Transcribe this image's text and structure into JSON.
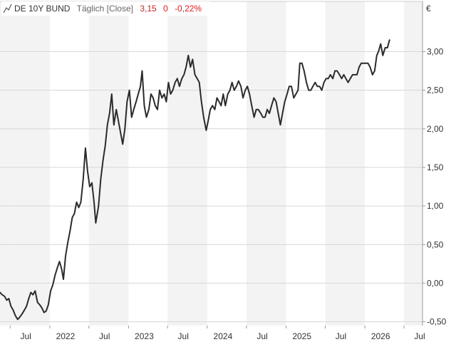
{
  "header": {
    "name": "DE 10Y BUND",
    "interval": "Täglich [Close]",
    "last": "3,15",
    "change": "0",
    "change_pct": "-0,22%"
  },
  "chart_data": {
    "type": "line",
    "currency": "€",
    "ylim": [
      -0.55,
      3.65
    ],
    "yticks": [
      -0.5,
      0.0,
      0.5,
      1.0,
      1.5,
      2.0,
      2.5,
      3.0
    ],
    "ytick_labels": [
      "-0,50",
      "0,00",
      "0,50",
      "1,00",
      "1,50",
      "2,00",
      "2,50",
      "3,00"
    ],
    "xlim": [
      "2021-05-15",
      "2026-09-25"
    ],
    "xticks": [
      {
        "date": "2021-07-01",
        "label": "Jul"
      },
      {
        "date": "2022-01-01",
        "label": "2022"
      },
      {
        "date": "2022-07-01",
        "label": "Jul"
      },
      {
        "date": "2023-01-01",
        "label": "2023"
      },
      {
        "date": "2023-07-01",
        "label": "Jul"
      },
      {
        "date": "2024-01-01",
        "label": "2024"
      },
      {
        "date": "2024-07-01",
        "label": "Jul"
      },
      {
        "date": "2025-01-01",
        "label": "2025"
      },
      {
        "date": "2025-07-01",
        "label": "Jul"
      },
      {
        "date": "2026-01-01",
        "label": "2026"
      },
      {
        "date": "2026-07-01",
        "label": "Jul"
      }
    ],
    "grid": true,
    "colors": {
      "line": "#2b2b2b",
      "negative": "#d42020",
      "band": "#f3f3f3",
      "grid": "#d6d6d6"
    },
    "series": [
      {
        "points": [
          [
            "2021-05-15",
            -0.12
          ],
          [
            "2021-05-25",
            -0.15
          ],
          [
            "2021-06-05",
            -0.17
          ],
          [
            "2021-06-15",
            -0.22
          ],
          [
            "2021-06-25",
            -0.2
          ],
          [
            "2021-07-05",
            -0.3
          ],
          [
            "2021-07-15",
            -0.35
          ],
          [
            "2021-07-25",
            -0.42
          ],
          [
            "2021-08-05",
            -0.47
          ],
          [
            "2021-08-15",
            -0.44
          ],
          [
            "2021-08-25",
            -0.4
          ],
          [
            "2021-09-05",
            -0.35
          ],
          [
            "2021-09-15",
            -0.3
          ],
          [
            "2021-09-25",
            -0.2
          ],
          [
            "2021-10-05",
            -0.12
          ],
          [
            "2021-10-15",
            -0.15
          ],
          [
            "2021-10-25",
            -0.1
          ],
          [
            "2021-11-05",
            -0.25
          ],
          [
            "2021-11-15",
            -0.28
          ],
          [
            "2021-11-25",
            -0.32
          ],
          [
            "2021-12-05",
            -0.38
          ],
          [
            "2021-12-15",
            -0.36
          ],
          [
            "2021-12-25",
            -0.28
          ],
          [
            "2022-01-05",
            -0.1
          ],
          [
            "2022-01-15",
            -0.02
          ],
          [
            "2022-01-25",
            0.1
          ],
          [
            "2022-02-05",
            0.2
          ],
          [
            "2022-02-15",
            0.28
          ],
          [
            "2022-02-25",
            0.18
          ],
          [
            "2022-03-05",
            0.05
          ],
          [
            "2022-03-15",
            0.35
          ],
          [
            "2022-03-25",
            0.52
          ],
          [
            "2022-04-05",
            0.68
          ],
          [
            "2022-04-15",
            0.85
          ],
          [
            "2022-04-25",
            0.9
          ],
          [
            "2022-05-05",
            1.05
          ],
          [
            "2022-05-15",
            0.98
          ],
          [
            "2022-05-25",
            1.05
          ],
          [
            "2022-06-05",
            1.35
          ],
          [
            "2022-06-15",
            1.75
          ],
          [
            "2022-06-25",
            1.45
          ],
          [
            "2022-07-05",
            1.25
          ],
          [
            "2022-07-15",
            1.3
          ],
          [
            "2022-07-25",
            1.05
          ],
          [
            "2022-08-02",
            0.78
          ],
          [
            "2022-08-15",
            1.0
          ],
          [
            "2022-08-25",
            1.35
          ],
          [
            "2022-09-05",
            1.6
          ],
          [
            "2022-09-15",
            1.78
          ],
          [
            "2022-09-25",
            2.05
          ],
          [
            "2022-10-05",
            2.2
          ],
          [
            "2022-10-15",
            2.45
          ],
          [
            "2022-10-25",
            2.05
          ],
          [
            "2022-11-05",
            2.25
          ],
          [
            "2022-11-15",
            2.1
          ],
          [
            "2022-11-25",
            1.95
          ],
          [
            "2022-12-05",
            1.8
          ],
          [
            "2022-12-15",
            2.0
          ],
          [
            "2022-12-25",
            2.35
          ],
          [
            "2023-01-05",
            2.5
          ],
          [
            "2023-01-15",
            2.15
          ],
          [
            "2023-01-25",
            2.25
          ],
          [
            "2023-02-05",
            2.35
          ],
          [
            "2023-02-15",
            2.45
          ],
          [
            "2023-02-25",
            2.55
          ],
          [
            "2023-03-05",
            2.75
          ],
          [
            "2023-03-15",
            2.3
          ],
          [
            "2023-03-25",
            2.15
          ],
          [
            "2023-04-05",
            2.25
          ],
          [
            "2023-04-15",
            2.45
          ],
          [
            "2023-04-25",
            2.4
          ],
          [
            "2023-05-05",
            2.3
          ],
          [
            "2023-05-15",
            2.25
          ],
          [
            "2023-05-25",
            2.5
          ],
          [
            "2023-06-05",
            2.4
          ],
          [
            "2023-06-15",
            2.45
          ],
          [
            "2023-06-25",
            2.35
          ],
          [
            "2023-07-05",
            2.6
          ],
          [
            "2023-07-15",
            2.45
          ],
          [
            "2023-07-25",
            2.5
          ],
          [
            "2023-08-05",
            2.6
          ],
          [
            "2023-08-15",
            2.65
          ],
          [
            "2023-08-25",
            2.55
          ],
          [
            "2023-09-05",
            2.65
          ],
          [
            "2023-09-15",
            2.7
          ],
          [
            "2023-09-25",
            2.8
          ],
          [
            "2023-10-05",
            2.95
          ],
          [
            "2023-10-15",
            2.8
          ],
          [
            "2023-10-25",
            2.9
          ],
          [
            "2023-11-05",
            2.7
          ],
          [
            "2023-11-15",
            2.65
          ],
          [
            "2023-11-25",
            2.6
          ],
          [
            "2023-12-05",
            2.35
          ],
          [
            "2023-12-15",
            2.15
          ],
          [
            "2023-12-27",
            1.98
          ],
          [
            "2024-01-05",
            2.1
          ],
          [
            "2024-01-15",
            2.25
          ],
          [
            "2024-01-25",
            2.3
          ],
          [
            "2024-02-05",
            2.25
          ],
          [
            "2024-02-15",
            2.4
          ],
          [
            "2024-02-25",
            2.35
          ],
          [
            "2024-03-05",
            2.3
          ],
          [
            "2024-03-15",
            2.45
          ],
          [
            "2024-03-25",
            2.3
          ],
          [
            "2024-04-05",
            2.45
          ],
          [
            "2024-04-15",
            2.5
          ],
          [
            "2024-04-25",
            2.6
          ],
          [
            "2024-05-05",
            2.5
          ],
          [
            "2024-05-15",
            2.55
          ],
          [
            "2024-05-25",
            2.62
          ],
          [
            "2024-06-05",
            2.55
          ],
          [
            "2024-06-15",
            2.4
          ],
          [
            "2024-06-25",
            2.5
          ],
          [
            "2024-07-05",
            2.55
          ],
          [
            "2024-07-15",
            2.45
          ],
          [
            "2024-07-25",
            2.3
          ],
          [
            "2024-08-05",
            2.15
          ],
          [
            "2024-08-15",
            2.25
          ],
          [
            "2024-08-25",
            2.25
          ],
          [
            "2024-09-05",
            2.2
          ],
          [
            "2024-09-15",
            2.15
          ],
          [
            "2024-09-25",
            2.15
          ],
          [
            "2024-10-05",
            2.25
          ],
          [
            "2024-10-15",
            2.2
          ],
          [
            "2024-10-25",
            2.3
          ],
          [
            "2024-11-05",
            2.4
          ],
          [
            "2024-11-15",
            2.35
          ],
          [
            "2024-11-25",
            2.2
          ],
          [
            "2024-12-05",
            2.05
          ],
          [
            "2024-12-15",
            2.2
          ],
          [
            "2024-12-25",
            2.35
          ],
          [
            "2025-01-05",
            2.45
          ],
          [
            "2025-01-15",
            2.55
          ],
          [
            "2025-01-25",
            2.55
          ],
          [
            "2025-02-05",
            2.4
          ],
          [
            "2025-02-15",
            2.45
          ],
          [
            "2025-02-25",
            2.5
          ],
          [
            "2025-03-05",
            2.85
          ],
          [
            "2025-03-15",
            2.85
          ],
          [
            "2025-03-25",
            2.75
          ],
          [
            "2025-04-05",
            2.6
          ],
          [
            "2025-04-15",
            2.5
          ],
          [
            "2025-04-25",
            2.5
          ],
          [
            "2025-05-05",
            2.55
          ],
          [
            "2025-05-15",
            2.6
          ],
          [
            "2025-05-25",
            2.55
          ],
          [
            "2025-06-05",
            2.55
          ],
          [
            "2025-06-15",
            2.5
          ],
          [
            "2025-06-25",
            2.6
          ],
          [
            "2025-07-05",
            2.65
          ],
          [
            "2025-07-15",
            2.65
          ],
          [
            "2025-07-25",
            2.7
          ],
          [
            "2025-08-05",
            2.65
          ],
          [
            "2025-08-15",
            2.75
          ],
          [
            "2025-08-25",
            2.75
          ],
          [
            "2025-09-05",
            2.7
          ],
          [
            "2025-09-15",
            2.65
          ],
          [
            "2025-09-25",
            2.7
          ],
          [
            "2025-10-05",
            2.65
          ],
          [
            "2025-10-15",
            2.6
          ],
          [
            "2025-10-25",
            2.65
          ],
          [
            "2025-11-05",
            2.7
          ],
          [
            "2025-11-15",
            2.7
          ],
          [
            "2025-11-25",
            2.7
          ],
          [
            "2025-12-05",
            2.8
          ],
          [
            "2025-12-15",
            2.85
          ],
          [
            "2025-12-25",
            2.85
          ],
          [
            "2026-01-05",
            2.85
          ],
          [
            "2026-01-15",
            2.85
          ],
          [
            "2026-01-25",
            2.8
          ],
          [
            "2026-02-05",
            2.7
          ],
          [
            "2026-02-15",
            2.75
          ],
          [
            "2026-02-25",
            2.95
          ],
          [
            "2026-03-05",
            3.0
          ],
          [
            "2026-03-15",
            3.1
          ],
          [
            "2026-03-25",
            2.95
          ],
          [
            "2026-04-05",
            3.05
          ],
          [
            "2026-04-15",
            3.05
          ],
          [
            "2026-04-25",
            3.15
          ]
        ]
      }
    ]
  }
}
